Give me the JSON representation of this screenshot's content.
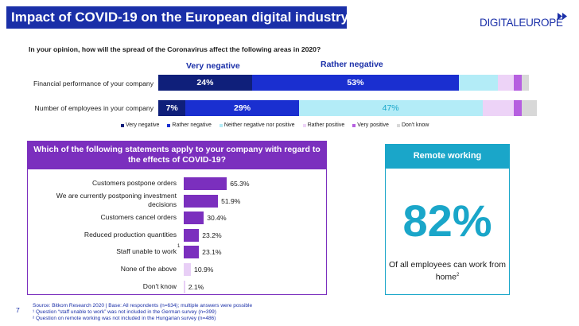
{
  "header": {
    "title": "Impact of COVID-19 on the European digital industry",
    "logo_text": "DIGITALEUROPE"
  },
  "survey": {
    "question": "In your opinion, how will the spread of the Coronavirus affect the following areas in 2020?",
    "header_very_negative": "Very negative",
    "header_rather_negative": "Rather negative"
  },
  "chart_data": [
    {
      "type": "bar",
      "orientation": "horizontal",
      "stacked": true,
      "categories": [
        "Financial performance of your company",
        "Number of employees in your company"
      ],
      "series": [
        {
          "name": "Very negative",
          "color": "#0f1f7a",
          "values": [
            24,
            7
          ],
          "labels": [
            "24%",
            "7%"
          ]
        },
        {
          "name": "Rather negative",
          "color": "#1a2fd0",
          "values": [
            53,
            29
          ],
          "labels": [
            "53%",
            "29%"
          ]
        },
        {
          "name": "Neither negative nor positive",
          "color": "#b3ecf7",
          "values": [
            10,
            47
          ],
          "labels": [
            "",
            "47%"
          ]
        },
        {
          "name": "Rather positive",
          "color": "#edd3f7",
          "values": [
            4,
            8
          ],
          "labels": [
            "",
            ""
          ]
        },
        {
          "name": "Very positive",
          "color": "#b65fe0",
          "values": [
            2,
            2
          ],
          "labels": [
            "",
            ""
          ]
        },
        {
          "name": "Don't know",
          "color": "#d8d8d8",
          "values": [
            2,
            4
          ],
          "labels": [
            "",
            ""
          ]
        }
      ],
      "legend": "bottom"
    },
    {
      "type": "bar",
      "orientation": "horizontal",
      "title": "Which of the following statements apply to your company with regard to the effects of COVID-19?",
      "categories": [
        "Customers postpone orders",
        "We are currently postponing investment decisions",
        "Customers cancel orders",
        "Reduced production quantities",
        "Staff unable to work",
        "None of the above",
        "Don't know"
      ],
      "values": [
        65.3,
        51.9,
        30.4,
        23.2,
        23.1,
        10.9,
        2.1
      ],
      "labels": [
        "65.3%",
        "51.9%",
        "30.4%",
        "23.2%",
        "23.1%",
        "10.9%",
        "2.1%"
      ],
      "footnote_markers": [
        "",
        "",
        "",
        "",
        "1",
        "",
        ""
      ],
      "colors": [
        "#7b2fbe",
        "#7b2fbe",
        "#7b2fbe",
        "#7b2fbe",
        "#7b2fbe",
        "#e8cff6",
        "#e8cff6"
      ]
    }
  ],
  "remote": {
    "title": "Remote working",
    "value": "82%",
    "caption": "Of all employees can work from home",
    "caption_marker": "2"
  },
  "footer": {
    "page": "7",
    "source": "Source: Bitkom Research 2020 | Base: All respondents (n=634); multiple answers were possible",
    "note1": "¹ Question “staff unable to work” was not included in the German survey (n=399)",
    "note2": "² Question on remote working was not included in the Hungarian survey (n=486)"
  }
}
